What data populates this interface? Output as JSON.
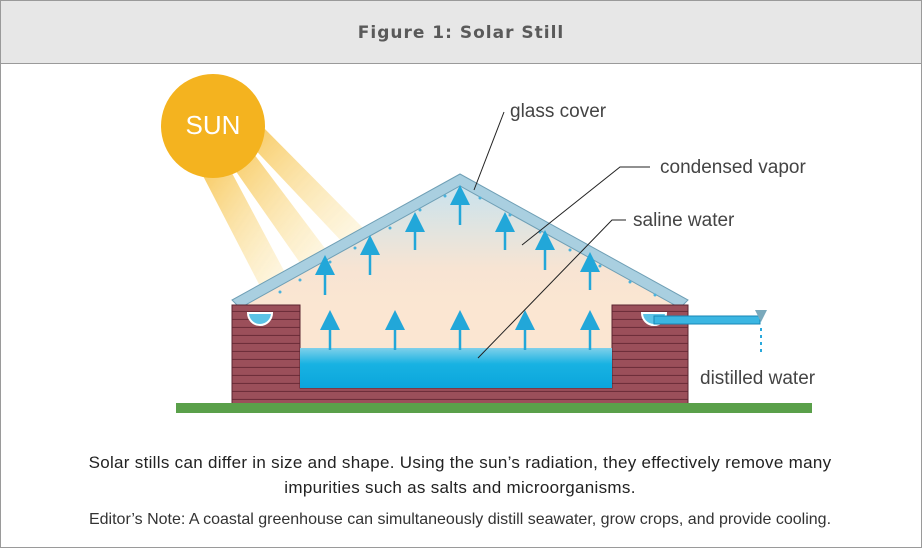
{
  "header": {
    "title": "Figure 1: Solar Still"
  },
  "diagram": {
    "sun_label": "SUN",
    "labels": [
      "glass cover",
      "condensed vapor",
      "saline water",
      "distilled water"
    ]
  },
  "caption": "Solar stills can differ in size and shape. Using the sun’s radiation, they effectively remove many impurities such as salts and microorganisms.",
  "note": "Editor’s Note: A coastal greenhouse can simultaneously distill seawater, grow crops, and provide cooling."
}
